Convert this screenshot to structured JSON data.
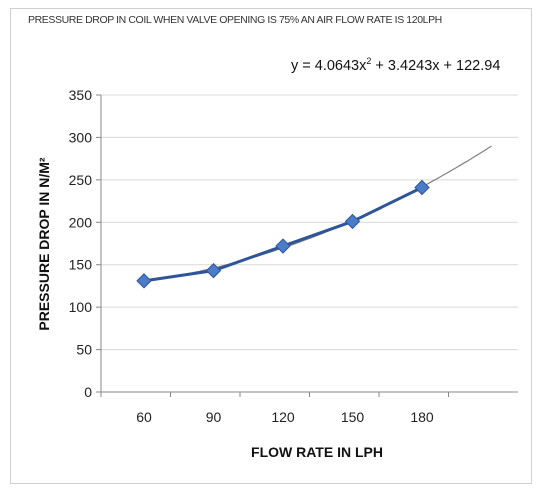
{
  "chart_data": {
    "type": "line",
    "title": "PRESSURE DROP IN COIL WHEN VALVE OPENING IS 75% AN AIR FLOW RATE IS 120LPH",
    "xlabel": "FLOW RATE IN LPH",
    "ylabel": "PRESSURE DROP IN N/M²",
    "categories": [
      "60",
      "90",
      "120",
      "150",
      "180"
    ],
    "series": [
      {
        "values": [
          131,
          143,
          172,
          201,
          241
        ]
      }
    ],
    "trendline": {
      "type": "polynomial",
      "order": 2,
      "equation": "y = 4.0643x² + 3.4243x + 122.94",
      "coefficients": [
        4.0643,
        3.4243,
        122.94
      ],
      "forward_periods": 1,
      "color": "#808080"
    },
    "ylim": [
      0,
      350
    ],
    "yticks": [
      0,
      50,
      100,
      150,
      200,
      250,
      300,
      350
    ],
    "grid": true,
    "legend": "none",
    "colors": {
      "series": "#2e5597",
      "marker": "#4a7cc7",
      "trendline": "#808080",
      "grid": "#d9d9d9"
    }
  }
}
